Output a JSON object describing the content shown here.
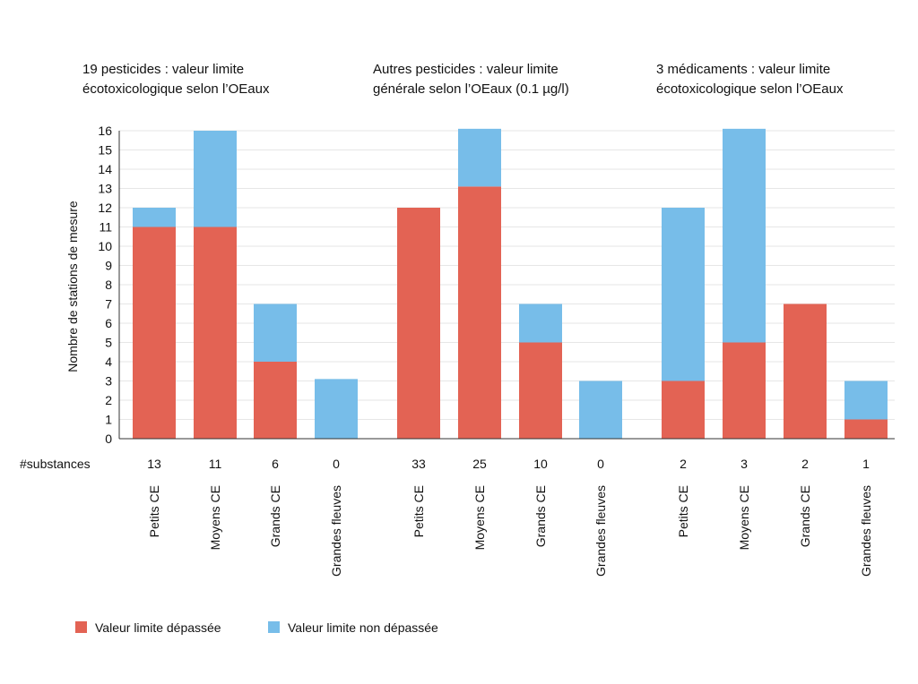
{
  "chart_data": {
    "type": "bar",
    "stacked": true,
    "ylabel": "Nombre de stations de mesure",
    "ylim": [
      0,
      16
    ],
    "yticks": [
      0,
      1,
      2,
      3,
      4,
      5,
      6,
      7,
      8,
      9,
      10,
      11,
      12,
      13,
      14,
      15,
      16
    ],
    "substances_label": "#substances",
    "colors": {
      "exceeded": "#e36354",
      "not_exceeded": "#77bde9",
      "grid": "#e6e6e6",
      "axis": "#333333"
    },
    "legend": [
      {
        "key": "exceeded",
        "label": "Valeur limite dépassée"
      },
      {
        "key": "not_exceeded",
        "label": "Valeur limite non dépassée"
      }
    ],
    "categories": [
      "Petits CE",
      "Moyens CE",
      "Grands CE",
      "Grandes fleuves"
    ],
    "groups": [
      {
        "title_lines": [
          "19 pesticides : valeur limite",
          "écotoxicologique selon l’OEaux"
        ],
        "exceeded": [
          11,
          11,
          4,
          0
        ],
        "not_exceeded": [
          1,
          5,
          3,
          3.1
        ],
        "substances": [
          "13",
          "11",
          "6",
          "0"
        ]
      },
      {
        "title_lines": [
          "Autres pesticides : valeur limite",
          "générale selon l’OEaux (0.1 µg/l)"
        ],
        "exceeded": [
          12,
          13.1,
          5,
          0
        ],
        "not_exceeded": [
          0,
          3,
          2,
          3
        ],
        "substances": [
          "33",
          "25",
          "10",
          "0"
        ]
      },
      {
        "title_lines": [
          "3 médicaments : valeur limite",
          "écotoxicologique selon l’OEaux"
        ],
        "exceeded": [
          3,
          5,
          7,
          1
        ],
        "not_exceeded": [
          9,
          11.1,
          0,
          2
        ],
        "substances": [
          "2",
          "3",
          "2",
          "1"
        ]
      }
    ]
  }
}
